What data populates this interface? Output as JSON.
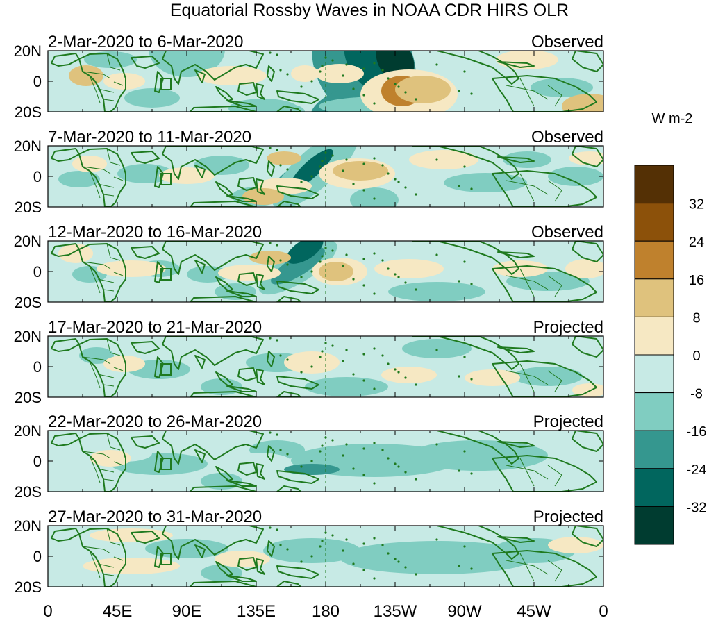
{
  "title": "Equatorial Rossby Waves in NOAA CDR HIRS OLR",
  "colors": {
    "levels": [
      "#003c30",
      "#01665e",
      "#35978f",
      "#80cdc1",
      "#c7eae5",
      "#f6e8c3",
      "#dfc27d",
      "#bf812d",
      "#8c510a",
      "#543005"
    ],
    "coast": "#1f7a1f"
  },
  "y_ticks": [
    "20N",
    "0",
    "20S"
  ],
  "x_ticks": [
    "0",
    "45E",
    "90E",
    "135E",
    "180",
    "135W",
    "90W",
    "45W",
    "0"
  ],
  "panels": [
    {
      "period": "2-Mar-2020 to 6-Mar-2020",
      "status": "Observed"
    },
    {
      "period": "7-Mar-2020 to 11-Mar-2020",
      "status": "Observed"
    },
    {
      "period": "12-Mar-2020 to 16-Mar-2020",
      "status": "Observed"
    },
    {
      "period": "17-Mar-2020 to 21-Mar-2020",
      "status": "Projected"
    },
    {
      "period": "22-Mar-2020 to 26-Mar-2020",
      "status": "Projected"
    },
    {
      "period": "27-Mar-2020 to 31-Mar-2020",
      "status": "Projected"
    }
  ],
  "colorbar": {
    "unit": "W m-2",
    "labels": [
      "32",
      "24",
      "16",
      "8",
      "0",
      "-8",
      "-16",
      "-24",
      "-32"
    ]
  }
}
